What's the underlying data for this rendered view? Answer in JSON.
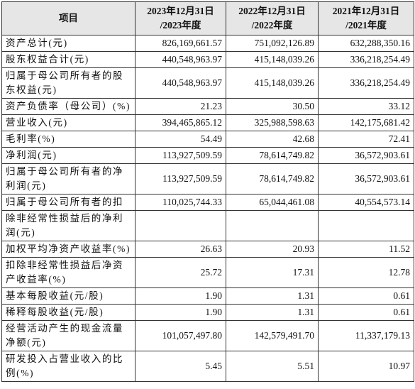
{
  "table": {
    "header": {
      "item": "项目",
      "columns": [
        {
          "date": "2023年12月31日",
          "period": "/2023年度"
        },
        {
          "date": "2022年12月31日",
          "period": "/2022年度"
        },
        {
          "date": "2021年12月31日",
          "period": "/2021年度"
        }
      ]
    },
    "rows": [
      {
        "label": "资产总计(元)",
        "values": [
          "826,169,661.57",
          "751,092,126.89",
          "632,288,350.16"
        ]
      },
      {
        "label": "股东权益合计(元)",
        "values": [
          "440,548,963.97",
          "415,148,039.26",
          "336,218,254.49"
        ]
      },
      {
        "label": "归属于母公司所有者的股东权益(元)",
        "values": [
          "440,548,963.97",
          "415,148,039.26",
          "336,218,254.49"
        ]
      },
      {
        "label": "资产负债率（母公司）(%)",
        "values": [
          "21.23",
          "30.50",
          "33.12"
        ]
      },
      {
        "label": "营业收入(元)",
        "values": [
          "394,465,865.12",
          "325,988,598.63",
          "142,175,681.42"
        ]
      },
      {
        "label": "毛利率(%)",
        "values": [
          "54.49",
          "42.68",
          "72.41"
        ]
      },
      {
        "label": "净利润(元)",
        "values": [
          "113,927,509.59",
          "78,614,749.82",
          "36,572,903.61"
        ]
      },
      {
        "label": "归属于母公司所有者的净利润(元)",
        "values": [
          "113,927,509.59",
          "78,614,749.82",
          "36,572,903.61"
        ]
      },
      {
        "label": "归属于母公司所有者的扣",
        "values": [
          "110,025,744.33",
          "65,044,461.08",
          "40,554,573.14"
        ]
      },
      {
        "label": "除非经常性损益后的净利润(元)"
      },
      {
        "label": "加权平均净资产收益率(%)",
        "values": [
          "26.63",
          "20.93",
          "11.52"
        ]
      },
      {
        "label": "扣除非经常性损益后净资产收益率(%)",
        "values": [
          "25.72",
          "17.31",
          "12.78"
        ]
      },
      {
        "label": "基本每股收益(元/股)",
        "values": [
          "1.90",
          "1.31",
          "0.61"
        ]
      },
      {
        "label": "稀释每股收益(元/股)",
        "values": [
          "1.90",
          "1.31",
          "0.61"
        ]
      },
      {
        "label": "经营活动产生的现金流量净额(元)",
        "values": [
          "101,057,497.80",
          "142,579,491.70",
          "11,337,179.13"
        ]
      },
      {
        "label": "研发投入占营业收入的比例(%)",
        "values": [
          "5.45",
          "5.51",
          "10.97"
        ]
      }
    ]
  }
}
